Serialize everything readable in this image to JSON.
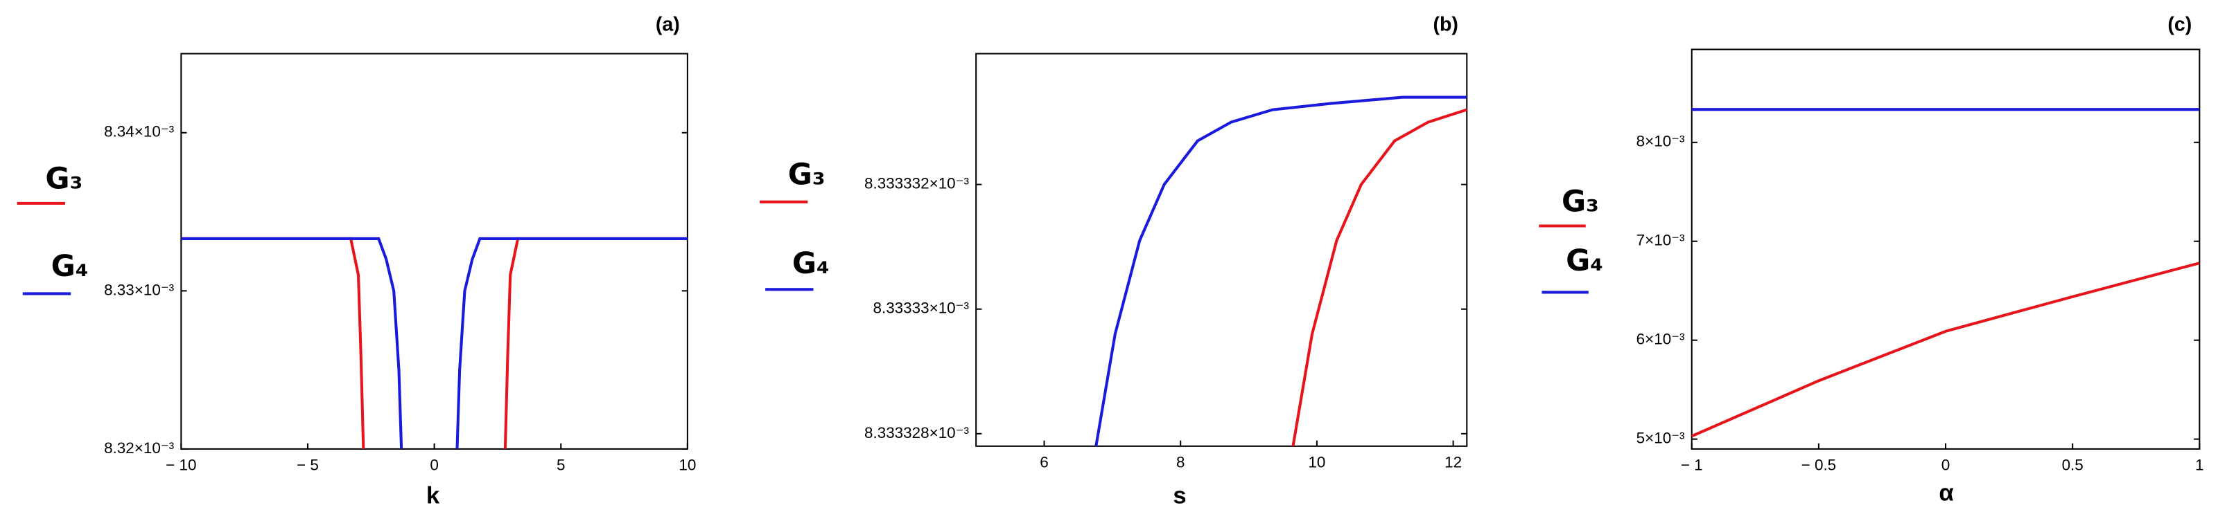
{
  "chart_data": [
    {
      "type": "line",
      "title": "(a)",
      "x_label": "k",
      "xlim": [
        -10,
        10
      ],
      "xticks": [
        {
          "value": -10,
          "label": "− 10"
        },
        {
          "value": -5,
          "label": "− 5"
        },
        0,
        5,
        10
      ],
      "ylim": [
        0.00832,
        0.008345
      ],
      "yticks": [
        {
          "value": 0.00832,
          "label": "8.32×10⁻³"
        },
        {
          "value": 0.00833,
          "label": "8.33×10⁻³"
        },
        {
          "value": 0.00834,
          "label": "8.34×10⁻³"
        }
      ],
      "series": [
        {
          "name": "G₃",
          "color": "#e8141b",
          "x": [
            -10,
            -3.3,
            -3.0,
            -2.9,
            -2.8,
            null,
            2.8,
            2.9,
            3.0,
            3.3,
            10
          ],
          "values": [
            0.0083333,
            0.0083333,
            0.008331,
            0.008326,
            0.00832,
            null,
            0.00832,
            0.008326,
            0.008331,
            0.0083333,
            0.0083333
          ]
        },
        {
          "name": "G₄",
          "color": "#1a1adc",
          "x": [
            -10,
            -2.2,
            -1.9,
            -1.6,
            -1.4,
            -1.3,
            null,
            0.9,
            1.0,
            1.2,
            1.5,
            1.8,
            10
          ],
          "values": [
            0.0083333,
            0.0083333,
            0.008332,
            0.00833,
            0.008325,
            0.00832,
            null,
            0.00832,
            0.008325,
            0.00833,
            0.008332,
            0.0083333,
            0.0083333
          ]
        }
      ]
    },
    {
      "type": "line",
      "title": "(b)",
      "x_label": "s",
      "xlim": [
        5,
        12.2
      ],
      "xticks": [
        6,
        8,
        10,
        12
      ],
      "ylim": [
        0.0083333278,
        0.0083333341
      ],
      "yticks": [
        {
          "value": 0.008333328,
          "label": "8.333328×10⁻³"
        },
        {
          "value": 0.00833333,
          "label": "8.33333×10⁻³"
        },
        {
          "value": 0.008333332,
          "label": "8.333332×10⁻³"
        }
      ],
      "series": [
        {
          "name": "G₃",
          "color": "#e8141b",
          "x": [
            9.65,
            9.93,
            10.29,
            10.65,
            11.14,
            11.63,
            12.2
          ],
          "values": [
            0.0083333278,
            0.0083333296,
            0.0083333311,
            0.008333332,
            0.0083333327,
            0.008333333,
            0.0083333332
          ]
        },
        {
          "name": "G₄",
          "color": "#1a1adc",
          "x": [
            6.76,
            7.04,
            7.4,
            7.76,
            8.25,
            8.74,
            9.35,
            10.2,
            11.26,
            12.2
          ],
          "values": [
            0.0083333278,
            0.0083333296,
            0.0083333311,
            0.008333332,
            0.0083333327,
            0.008333333,
            0.0083333332,
            0.0083333333,
            0.0083333334,
            0.0083333334
          ]
        }
      ]
    },
    {
      "type": "line",
      "title": "(c)",
      "x_label": "α",
      "xlim": [
        -1,
        1
      ],
      "xticks": [
        {
          "value": -1,
          "label": "− 1"
        },
        {
          "value": -0.5,
          "label": "− 0.5"
        },
        0,
        0.5,
        1
      ],
      "ylim": [
        0.0049,
        0.00894
      ],
      "yticks": [
        {
          "value": 0.005,
          "label": "5×10⁻³"
        },
        {
          "value": 0.006,
          "label": "6×10⁻³"
        },
        {
          "value": 0.007,
          "label": "7×10⁻³"
        },
        {
          "value": 0.008,
          "label": "8×10⁻³"
        }
      ],
      "series": [
        {
          "name": "G₃",
          "color": "#e8141b",
          "x": [
            -1,
            -0.5,
            0,
            0.5,
            1
          ],
          "values": [
            0.00503,
            0.00559,
            0.00609,
            0.00644,
            0.00678
          ]
        },
        {
          "name": "G₄",
          "color": "#1a1adc",
          "x": [
            -1,
            1
          ],
          "values": [
            0.008333,
            0.008333
          ]
        }
      ]
    }
  ]
}
